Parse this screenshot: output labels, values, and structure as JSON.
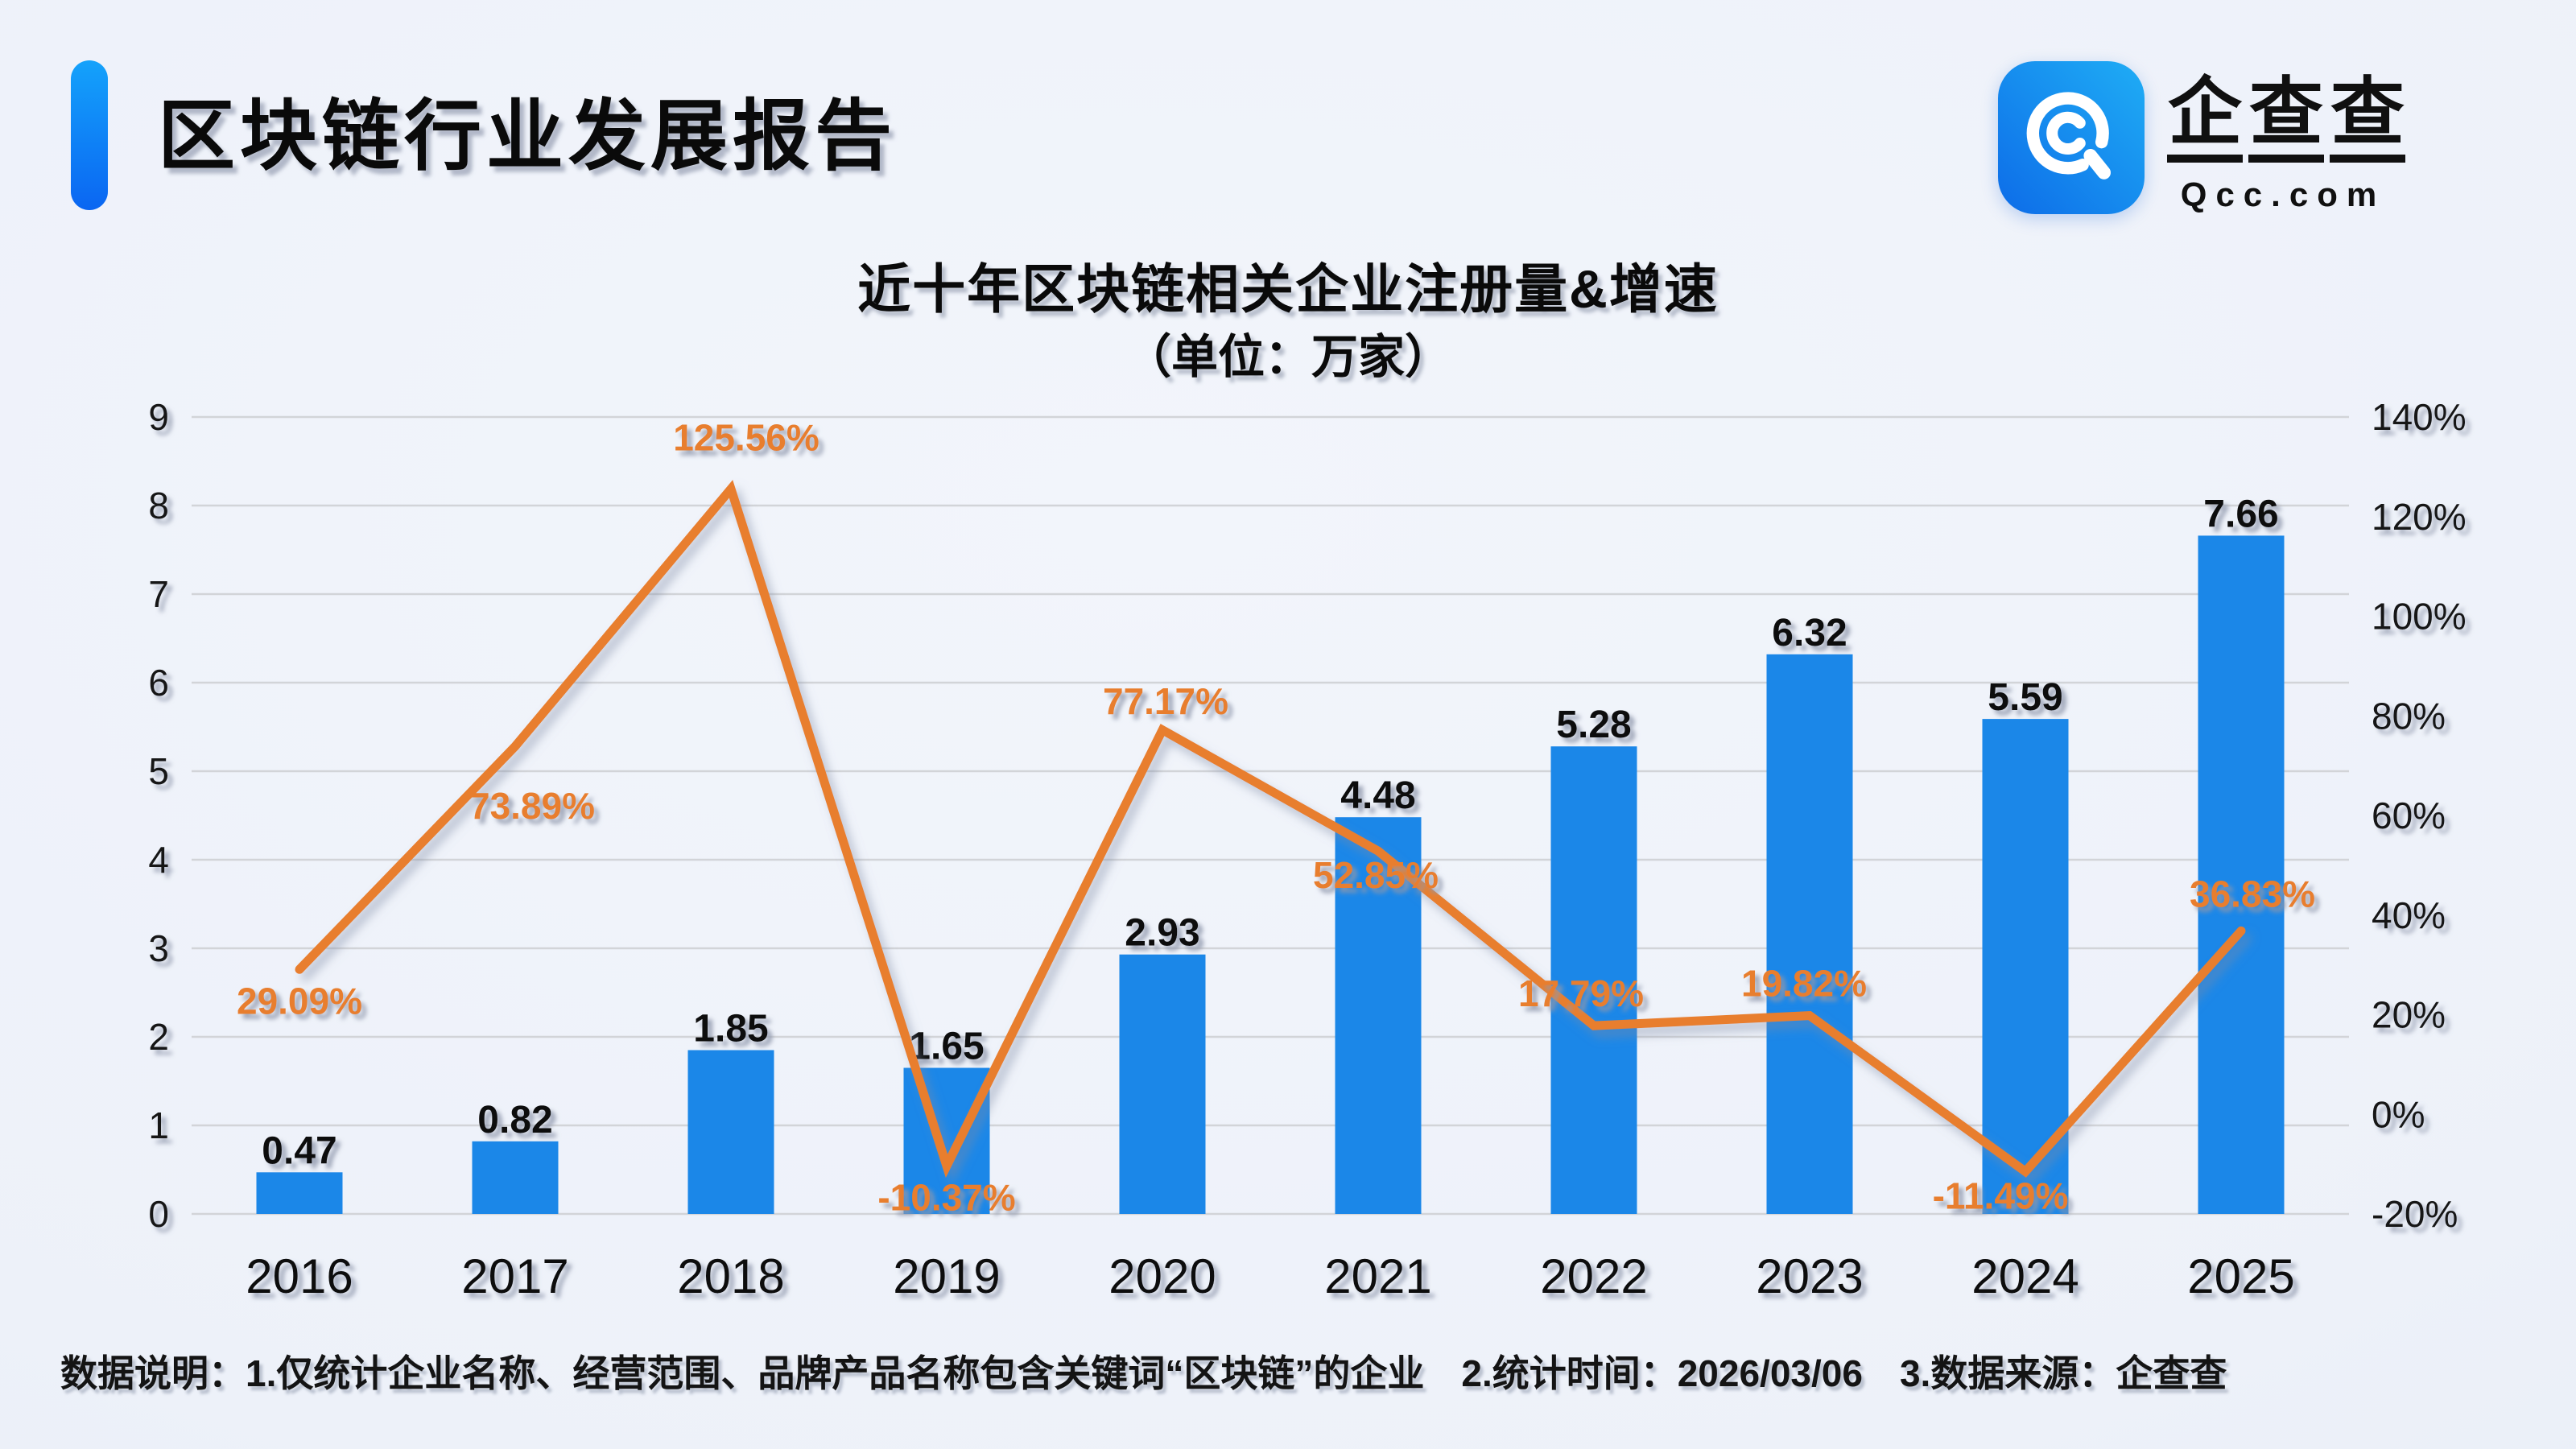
{
  "header": {
    "title": "区块链行业发展报告",
    "accent_colors": [
      "#14a2fb",
      "#0a66f2"
    ]
  },
  "logo": {
    "icon": "qcc-magnifier-icon",
    "icon_colors": [
      "#1fadf5",
      "#0d6ce8"
    ],
    "name": "企查查",
    "domain": "Qcc.com"
  },
  "chart": {
    "title": "近十年区块链相关企业注册量&增速",
    "subtitle": "（单位：万家）"
  },
  "chart_data": {
    "type": "bar+line",
    "title": "近十年区块链相关企业注册量&增速",
    "unit": "万家",
    "categories": [
      "2016",
      "2017",
      "2018",
      "2019",
      "2020",
      "2021",
      "2022",
      "2023",
      "2024",
      "2025"
    ],
    "series": [
      {
        "name": "注册量",
        "type": "bar",
        "color": "#1b87e8",
        "values": [
          0.47,
          0.82,
          1.85,
          1.65,
          2.93,
          4.48,
          5.28,
          6.32,
          5.59,
          7.66
        ],
        "labels": [
          "0.47",
          "0.82",
          "1.85",
          "1.65",
          "2.93",
          "4.48",
          "5.28",
          "6.32",
          "5.59",
          "7.66"
        ]
      },
      {
        "name": "增速",
        "type": "line",
        "color": "#e87e2f",
        "values": [
          29.09,
          73.89,
          125.56,
          -10.37,
          77.17,
          52.85,
          17.79,
          19.82,
          -11.49,
          36.83
        ],
        "labels": [
          "29.09%",
          "73.89%",
          "125.56%",
          "-10.37%",
          "77.17%",
          "52.85%",
          "17.79%",
          "19.82%",
          "-11.49%",
          "36.83%"
        ],
        "label_dx": [
          0,
          21,
          19,
          0,
          4,
          -3,
          -16,
          -7,
          -31,
          14
        ],
        "label_dy": [
          55,
          90,
          -48,
          55,
          -20,
          46,
          -24,
          -24,
          46,
          -30
        ]
      }
    ],
    "left_axis": {
      "min": 0,
      "max": 9,
      "ticks": [
        "0",
        "1",
        "2",
        "3",
        "4",
        "5",
        "6",
        "7",
        "8",
        "9"
      ]
    },
    "right_axis": {
      "min": -20,
      "max": 140,
      "ticks": [
        "-20%",
        "0%",
        "20%",
        "40%",
        "60%",
        "80%",
        "100%",
        "120%",
        "140%"
      ]
    },
    "grid": true,
    "legend_position": "none",
    "colors": {
      "grid": "#d2d4d8",
      "tick_text": "#131313",
      "bar_label": "#111111"
    }
  },
  "footnote": {
    "text": "数据说明：1.仅统计企业名称、经营范围、品牌产品名称包含关键词“区块链”的企业　2.统计时间：2026/03/06　3.数据来源：企查查"
  }
}
